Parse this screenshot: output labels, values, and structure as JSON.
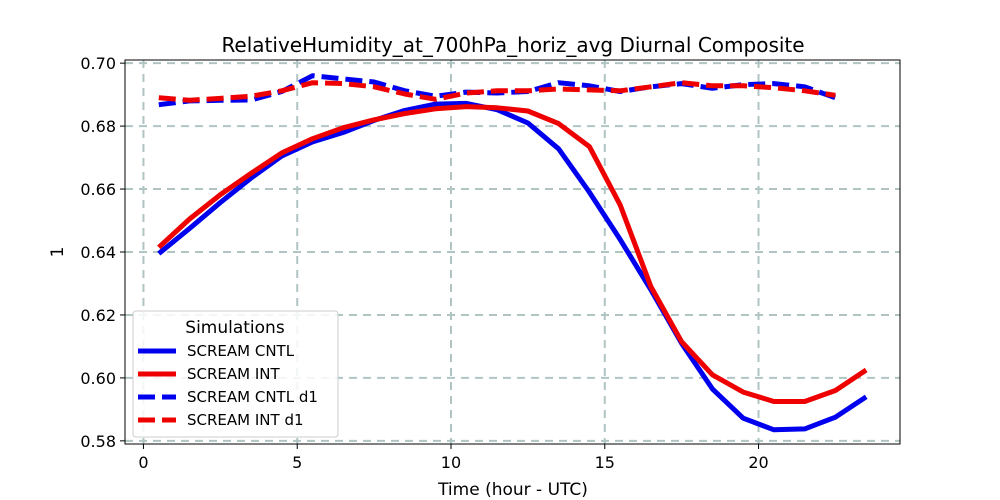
{
  "chart_data": {
    "type": "line",
    "title": "RelativeHumidity_at_700hPa_horiz_avg Diurnal Composite",
    "xlabel": "Time (hour - UTC)",
    "ylabel": "1",
    "xlim": [
      -0.6,
      24.6
    ],
    "ylim": [
      0.579,
      0.701
    ],
    "xticks": [
      0,
      5,
      10,
      15,
      20
    ],
    "xtick_labels": [
      "0",
      "5",
      "10",
      "15",
      "20"
    ],
    "yticks": [
      0.58,
      0.6,
      0.62,
      0.64,
      0.66,
      0.68,
      0.7
    ],
    "ytick_labels": [
      "0.58",
      "0.60",
      "0.62",
      "0.64",
      "0.66",
      "0.68",
      "0.70"
    ],
    "grid": true,
    "legend": {
      "title": "Simulations",
      "placement": "lower-left"
    },
    "series": [
      {
        "name": "SCREAM CNTL",
        "color": "#0000ee",
        "linestyle": "solid",
        "x": [
          0.5,
          1.5,
          2.5,
          3.5,
          4.5,
          5.5,
          6.5,
          7.5,
          8.5,
          9.5,
          10.5,
          11.5,
          12.5,
          13.5,
          14.5,
          15.5,
          16.5,
          17.5,
          18.5,
          19.5,
          20.5,
          21.5,
          22.5,
          23.5
        ],
        "values": [
          0.6395,
          0.6475,
          0.6557,
          0.6635,
          0.6705,
          0.675,
          0.678,
          0.6818,
          0.685,
          0.687,
          0.6872,
          0.6852,
          0.681,
          0.6728,
          0.659,
          0.644,
          0.628,
          0.611,
          0.5965,
          0.5872,
          0.5835,
          0.5838,
          0.5875,
          0.594
        ]
      },
      {
        "name": "SCREAM INT",
        "color": "#ee0000",
        "linestyle": "solid",
        "x": [
          0.5,
          1.5,
          2.5,
          3.5,
          4.5,
          5.5,
          6.5,
          7.5,
          8.5,
          9.5,
          10.5,
          11.5,
          12.5,
          13.5,
          14.5,
          15.5,
          16.5,
          17.5,
          18.5,
          19.5,
          20.5,
          21.5,
          22.5,
          23.5
        ],
        "values": [
          0.6415,
          0.6505,
          0.6582,
          0.665,
          0.6715,
          0.676,
          0.6795,
          0.682,
          0.684,
          0.6855,
          0.6862,
          0.6858,
          0.6848,
          0.6808,
          0.6735,
          0.655,
          0.629,
          0.6115,
          0.601,
          0.5955,
          0.5925,
          0.5925,
          0.596,
          0.6025
        ]
      },
      {
        "name": "SCREAM CNTL d1",
        "color": "#0000ee",
        "linestyle": "dashed",
        "x": [
          0.5,
          1.5,
          2.5,
          3.5,
          4.5,
          5.5,
          6.5,
          7.5,
          8.5,
          9.5,
          10.5,
          11.5,
          12.5,
          13.5,
          14.5,
          15.5,
          16.5,
          17.5,
          18.5,
          19.5,
          20.5,
          21.5,
          22.5
        ],
        "values": [
          0.6868,
          0.688,
          0.6882,
          0.6883,
          0.691,
          0.696,
          0.695,
          0.694,
          0.6912,
          0.6895,
          0.6908,
          0.6905,
          0.691,
          0.6938,
          0.6928,
          0.691,
          0.6925,
          0.6935,
          0.692,
          0.6932,
          0.6935,
          0.6925,
          0.689
        ]
      },
      {
        "name": "SCREAM INT d1",
        "color": "#ee0000",
        "linestyle": "dashed",
        "x": [
          0.5,
          1.5,
          2.5,
          3.5,
          4.5,
          5.5,
          6.5,
          7.5,
          8.5,
          9.5,
          10.5,
          11.5,
          12.5,
          13.5,
          14.5,
          15.5,
          16.5,
          17.5,
          18.5,
          19.5,
          20.5,
          21.5,
          22.5
        ],
        "values": [
          0.689,
          0.6882,
          0.6888,
          0.6895,
          0.6912,
          0.6938,
          0.6935,
          0.6925,
          0.6902,
          0.6885,
          0.6905,
          0.6912,
          0.6912,
          0.6918,
          0.6915,
          0.6912,
          0.6925,
          0.6938,
          0.6928,
          0.6928,
          0.6922,
          0.6912,
          0.6898
        ]
      }
    ]
  }
}
